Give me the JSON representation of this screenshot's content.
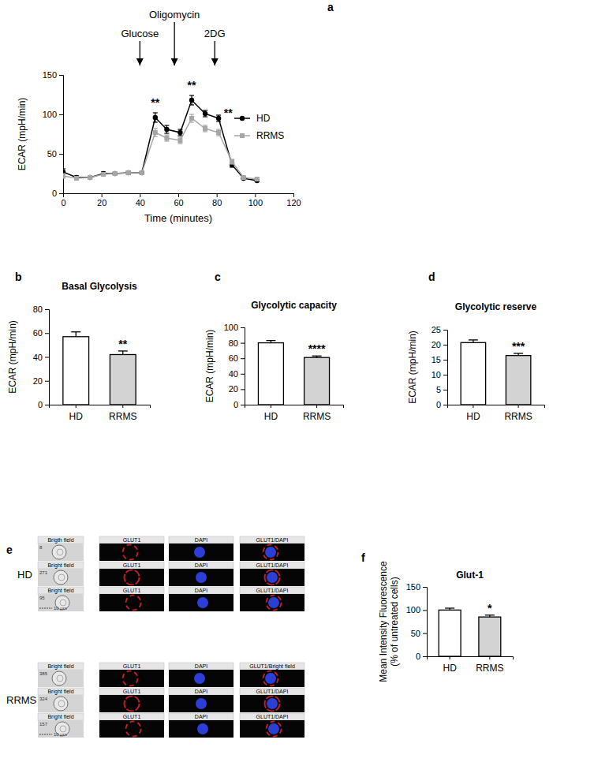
{
  "chart_data": [
    {
      "type": "line",
      "panel": "a",
      "x_label": "Time (minutes)",
      "y_label": "ECAR (mpH/min)",
      "x": [
        0,
        7,
        14,
        21,
        27,
        34,
        41,
        48,
        54,
        61,
        67,
        74,
        81,
        88,
        94,
        101
      ],
      "xlim": [
        0,
        120
      ],
      "xticks": [
        0,
        20,
        40,
        60,
        80,
        100,
        120
      ],
      "ylim": [
        0,
        150
      ],
      "yticks": [
        0,
        50,
        100,
        150
      ],
      "legend": "right",
      "series": [
        {
          "name": "HD",
          "color": "#000000",
          "marker": "circle",
          "values": [
            27,
            20,
            20,
            25,
            25,
            26,
            26,
            96,
            81,
            77,
            118,
            101,
            95,
            36,
            19,
            16
          ],
          "errors": [
            4,
            2,
            1,
            2,
            1,
            2,
            1,
            6,
            5,
            4,
            6,
            4,
            4,
            3,
            1,
            1
          ]
        },
        {
          "name": "RRMS",
          "color": "#a6a6a6",
          "marker": "square",
          "values": [
            22,
            19,
            20,
            24,
            25,
            26,
            26,
            77,
            70,
            67,
            95,
            82,
            77,
            40,
            20,
            18
          ],
          "errors": [
            3,
            2,
            1,
            2,
            1,
            1,
            1,
            5,
            4,
            4,
            5,
            4,
            4,
            3,
            1,
            1
          ]
        }
      ],
      "arrows": [
        {
          "text": "Glucose",
          "x": 40
        },
        {
          "text": "Oligomycin",
          "x": 58
        },
        {
          "text": "2DG",
          "x": 79
        }
      ],
      "annotations": [
        {
          "text": "**",
          "x": 48,
          "y": 110
        },
        {
          "text": "**",
          "x": 67,
          "y": 132
        },
        {
          "text": "**",
          "x": 86,
          "y": 97
        }
      ]
    },
    {
      "type": "bar",
      "panel": "b",
      "title": "Basal Glycolysis",
      "y_label": "ECAR (mpH/min)",
      "categories": [
        "HD",
        "RRMS"
      ],
      "values": [
        57,
        42
      ],
      "errors": [
        4,
        3
      ],
      "colors": [
        "#ffffff",
        "#d3d3d3"
      ],
      "ylim": [
        0,
        80
      ],
      "yticks": [
        0,
        20,
        40,
        60,
        80
      ],
      "annotations": [
        {
          "text": "**",
          "category": "RRMS"
        }
      ]
    },
    {
      "type": "bar",
      "panel": "c",
      "title": "Glycolytic capacity",
      "y_label": "ECAR (mpH/min)",
      "categories": [
        "HD",
        "RRMS"
      ],
      "values": [
        80,
        61
      ],
      "errors": [
        3,
        2
      ],
      "colors": [
        "#ffffff",
        "#d3d3d3"
      ],
      "ylim": [
        0,
        100
      ],
      "yticks": [
        0,
        20,
        40,
        60,
        80,
        100
      ],
      "annotations": [
        {
          "text": "****",
          "category": "RRMS"
        }
      ]
    },
    {
      "type": "bar",
      "panel": "d",
      "title": "Glycolytic reserve",
      "y_label": "ECAR (mpH/min)",
      "categories": [
        "HD",
        "RRMS"
      ],
      "values": [
        20.7,
        16.4
      ],
      "errors": [
        0.9,
        0.7
      ],
      "colors": [
        "#ffffff",
        "#d3d3d3"
      ],
      "ylim": [
        0,
        25
      ],
      "yticks": [
        0,
        5,
        10,
        15,
        20,
        25
      ],
      "annotations": [
        {
          "text": "***",
          "category": "RRMS"
        }
      ]
    },
    {
      "type": "bar",
      "panel": "f",
      "title": "Glut-1",
      "y_label": [
        "Mean Intensity Fluorescence",
        "(% of untreated cells)"
      ],
      "categories": [
        "HD",
        "RRMS"
      ],
      "values": [
        100,
        85
      ],
      "errors": [
        4,
        4
      ],
      "colors": [
        "#ffffff",
        "#d3d3d3"
      ],
      "ylim": [
        0,
        150
      ],
      "yticks": [
        0,
        50,
        100,
        150
      ],
      "annotations": [
        {
          "text": "*",
          "category": "RRMS"
        }
      ]
    }
  ],
  "image_panel": {
    "panel": "e",
    "groups": [
      {
        "label": "HD",
        "scale_bar": "10 μm",
        "rows": [
          {
            "id": 8,
            "headers": [
              "Brigth field",
              "GLUT1",
              "DAPI",
              "GLUT1/DAPI"
            ]
          },
          {
            "id": 271,
            "headers": [
              "Bright field",
              "GLUT1",
              "DAPI",
              "GLUT1/DAPI"
            ]
          },
          {
            "id": 95,
            "headers": [
              "Bright field",
              "GLUT1",
              "DAPI",
              "GLUT1/DAPI"
            ]
          }
        ]
      },
      {
        "label": "RRMS",
        "scale_bar": "10 μm",
        "rows": [
          {
            "id": 385,
            "headers": [
              "Bright field",
              "GLUT1",
              "DAPI",
              "GLUT1/Bright field"
            ]
          },
          {
            "id": 324,
            "headers": [
              "Bright field",
              "GLUT1",
              "DAPI",
              "GLUT1/DAPI"
            ]
          },
          {
            "id": 157,
            "headers": [
              "Bright field",
              "GLUT1",
              "DAPI",
              "GLUT1/DAPI"
            ]
          }
        ]
      }
    ]
  }
}
